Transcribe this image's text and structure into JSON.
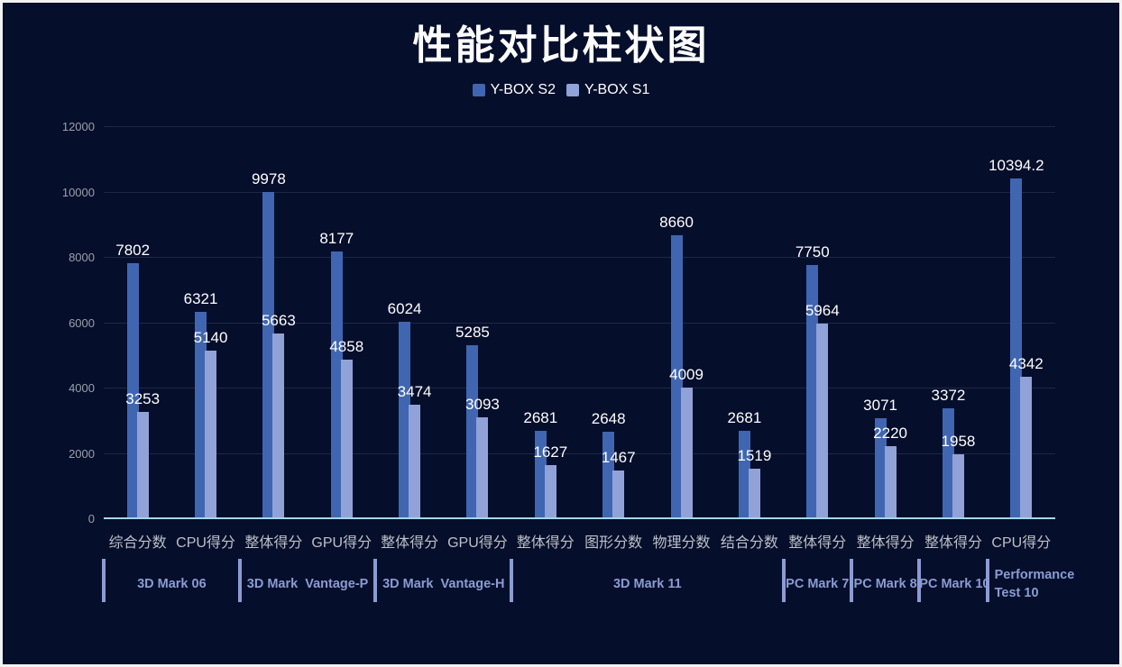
{
  "title": "性能对比柱状图",
  "legend": {
    "items": [
      {
        "name": "Y-BOX S2",
        "color": "#4066B2"
      },
      {
        "name": "Y-BOX S1",
        "color": "#90A2D8"
      }
    ]
  },
  "colors": {
    "background": "#050E2B",
    "frame_border": "#F2F2F2",
    "series_s2": "#4066B2",
    "series_s1": "#90A2D8",
    "axis_line": "#A2D8E4",
    "gridline": "#1E2745",
    "y_tick_label": "#9AA0AC",
    "value_label": "#FFFFFF",
    "category_label": "#BCC0C8",
    "group_label": "#8C9CD2",
    "title_text": "#FFFFFF"
  },
  "chart_data": {
    "type": "bar",
    "title": "性能对比柱状图",
    "categories": [
      "综合分数",
      "CPU得分",
      "整体得分",
      "GPU得分",
      "整体得分",
      "GPU得分",
      "整体得分",
      "图形分数",
      "物理分数",
      "结合分数",
      "整体得分",
      "整体得分",
      "整体得分",
      "CPU得分"
    ],
    "groups": [
      {
        "label": "3D Mark 06",
        "span": 2
      },
      {
        "label": "3D Mark  Vantage-P",
        "span": 2
      },
      {
        "label": "3D Mark  Vantage-H",
        "span": 2
      },
      {
        "label": "3D Mark 11",
        "span": 4
      },
      {
        "label": "PC Mark 7",
        "span": 1
      },
      {
        "label": "PC Mark 8",
        "span": 1
      },
      {
        "label": "PC Mark 10",
        "span": 1
      },
      {
        "label": "Performance Test 10",
        "span": 1
      }
    ],
    "series": [
      {
        "name": "Y-BOX S2",
        "color": "#4066B2",
        "values": [
          7802,
          6321,
          9978,
          8177,
          6024,
          5285,
          2681,
          2648,
          8660,
          2681,
          7750,
          3071,
          3372,
          10394.2
        ]
      },
      {
        "name": "Y-BOX S1",
        "color": "#90A2D8",
        "values": [
          3253,
          5140,
          5663,
          4858,
          3474,
          3093,
          1627,
          1467,
          4009,
          1519,
          5964,
          2220,
          1958,
          4342
        ]
      }
    ],
    "xlabel": "",
    "ylabel": "",
    "ylim": [
      0,
      12000
    ],
    "yticks": [
      0,
      2000,
      4000,
      6000,
      8000,
      10000,
      12000
    ],
    "grid": true,
    "legend_position": "top",
    "value_labels": true
  }
}
